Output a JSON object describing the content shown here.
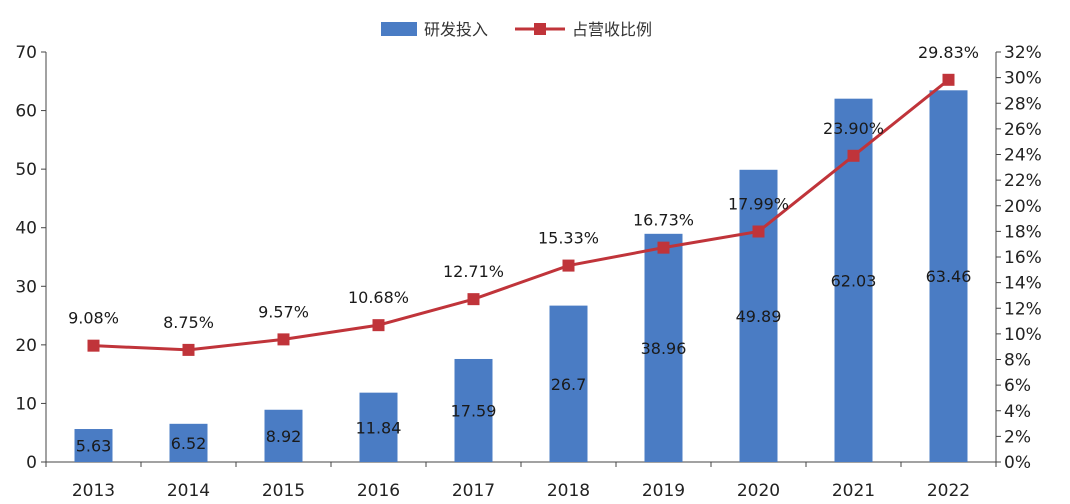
{
  "chart_data": {
    "type": "bar",
    "categories": [
      "2013",
      "2014",
      "2015",
      "2016",
      "2017",
      "2018",
      "2019",
      "2020",
      "2021",
      "2022"
    ],
    "series": [
      {
        "name": "研发投入",
        "type": "bar",
        "axis": "left",
        "values": [
          5.63,
          6.52,
          8.92,
          11.84,
          17.59,
          26.7,
          38.96,
          49.89,
          62.03,
          63.46
        ],
        "labels": [
          "5.63",
          "6.52",
          "8.92",
          "11.84",
          "17.59",
          "26.7",
          "38.96",
          "49.89",
          "62.03",
          "63.46"
        ],
        "color": "#4a7cc4"
      },
      {
        "name": "占营收比例",
        "type": "line",
        "axis": "right",
        "values": [
          9.08,
          8.75,
          9.57,
          10.68,
          12.71,
          15.33,
          16.73,
          17.99,
          23.9,
          29.83
        ],
        "labels": [
          "9.08%",
          "8.75%",
          "9.57%",
          "10.68%",
          "12.71%",
          "15.33%",
          "16.73%",
          "17.99%",
          "23.90%",
          "29.83%"
        ],
        "color": "#c0343a"
      }
    ],
    "y_left": {
      "ylim": [
        0,
        70
      ],
      "ticks": [
        "0",
        "10",
        "20",
        "30",
        "40",
        "50",
        "60",
        "70"
      ]
    },
    "y_right": {
      "ylim": [
        0,
        32
      ],
      "ticks": [
        "0%",
        "2%",
        "4%",
        "6%",
        "8%",
        "10%",
        "12%",
        "14%",
        "16%",
        "18%",
        "20%",
        "22%",
        "24%",
        "26%",
        "28%",
        "30%",
        "32%"
      ]
    },
    "legend_position": "top-center",
    "grid": false
  }
}
